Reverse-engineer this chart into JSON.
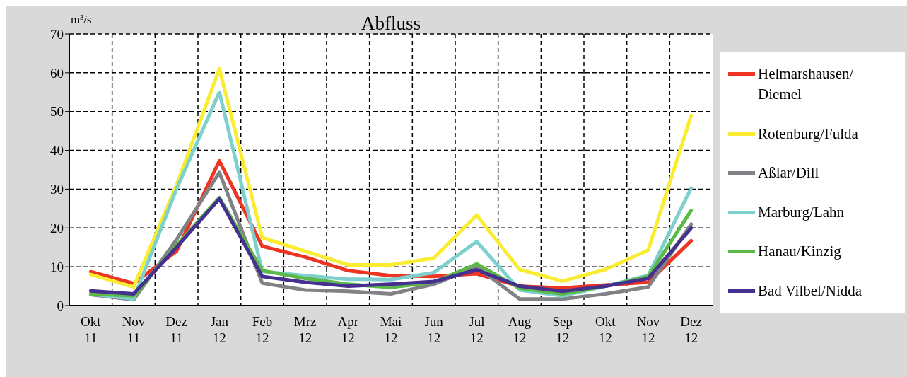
{
  "chart_data": {
    "type": "line",
    "title": "Abfluss",
    "ylabel": "m³/s",
    "categories": [
      "Okt\n11",
      "Nov\n11",
      "Dez\n11",
      "Jan\n12",
      "Feb\n12",
      "Mrz\n12",
      "Apr\n12",
      "Mai\n12",
      "Jun\n12",
      "Jul\n12",
      "Aug\n12",
      "Sep\n12",
      "Okt\n12",
      "Nov\n12",
      "Dez\n12"
    ],
    "series": [
      {
        "name": "Helmarshausen/\nDiemel",
        "color": "#ee3524",
        "values": [
          8.7,
          5.7,
          14,
          37.3,
          15.3,
          12.5,
          9,
          7.7,
          7.5,
          8.2,
          5,
          4.5,
          5.3,
          6,
          16.7
        ]
      },
      {
        "name": "Rotenburg/Fulda",
        "color": "#f9ec31",
        "values": [
          8,
          4.8,
          31,
          61,
          17.5,
          14,
          10.5,
          10.5,
          12.2,
          23.3,
          9.3,
          6.3,
          9.3,
          14.3,
          49
        ]
      },
      {
        "name": "Aßlar/Dill",
        "color": "#808285",
        "values": [
          2.8,
          1.5,
          17,
          34.3,
          5.8,
          4,
          3.7,
          3,
          5.5,
          10,
          1.7,
          1.7,
          3,
          4.8,
          21
        ]
      },
      {
        "name": "Marburg/Lahn",
        "color": "#7dd0ce",
        "values": [
          3,
          1.7,
          30,
          55,
          8.8,
          7.7,
          6.8,
          6.7,
          8.5,
          16.5,
          4,
          2.5,
          5,
          7.8,
          30.3
        ]
      },
      {
        "name": "Hanau/Kinzig",
        "color": "#5bb947",
        "values": [
          3,
          2.5,
          15.5,
          27.8,
          9,
          7,
          5.5,
          4.7,
          6,
          10.7,
          4.5,
          3,
          5,
          7.5,
          24.5
        ]
      },
      {
        "name": "Bad Vilbel/Nidda",
        "color": "#45308f",
        "values": [
          3.8,
          3,
          15,
          27.5,
          7.5,
          6,
          5,
          5.5,
          6.2,
          9.2,
          5,
          3.7,
          5,
          7,
          20
        ]
      }
    ],
    "ylim": [
      0,
      70
    ],
    "yticks": [
      0,
      10,
      20,
      30,
      40,
      50,
      60,
      70
    ],
    "grid": true,
    "legend": "right",
    "marker": "none",
    "line_style": "solid"
  }
}
